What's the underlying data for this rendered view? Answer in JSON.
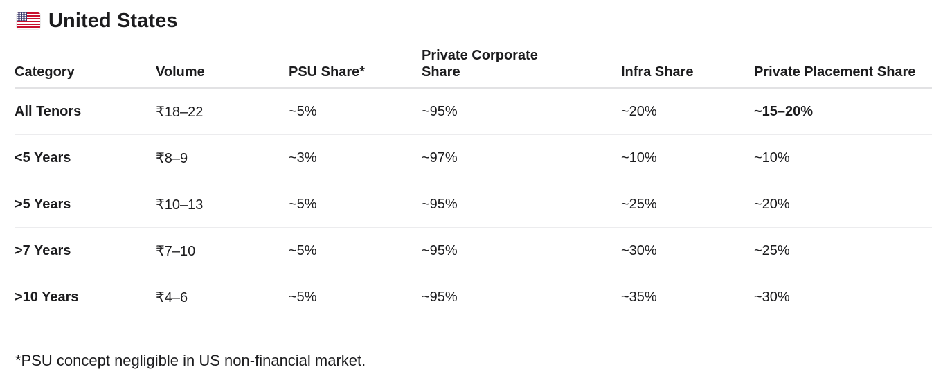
{
  "header": {
    "flag": "us-flag-icon",
    "title": "United States"
  },
  "table": {
    "columns": [
      "Category",
      "Volume",
      "PSU Share*",
      "Private Corporate Share",
      "Infra Share",
      "Private Placement Share"
    ],
    "rows": [
      [
        "All Tenors",
        "₹18–22",
        "~5%",
        "~95%",
        "~20%",
        "~15–20%"
      ],
      [
        "<5 Years",
        "₹8–9",
        "~3%",
        "~97%",
        "~10%",
        "~10%"
      ],
      [
        ">5 Years",
        "₹10–13",
        "~5%",
        "~95%",
        "~25%",
        "~20%"
      ],
      [
        ">7 Years",
        "₹7–10",
        "~5%",
        "~95%",
        "~30%",
        "~25%"
      ],
      [
        ">10 Years",
        "₹4–6",
        "~5%",
        "~95%",
        "~35%",
        "~30%"
      ]
    ]
  },
  "footnote": "*PSU concept negligible in US non-financial market."
}
